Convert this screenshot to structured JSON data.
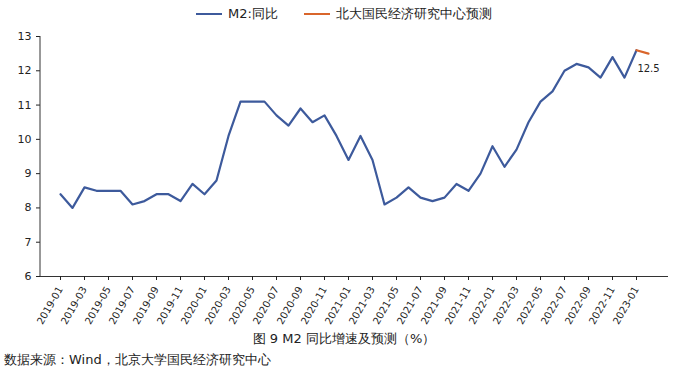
{
  "chart_data": {
    "type": "line",
    "title": "图 9 M2 同比增速及预测（%）",
    "note": "数据来源：Wind，北京大学国民经济研究中心",
    "legend": "top",
    "grid": false,
    "categories": [
      "2019-01",
      null,
      "2019-03",
      null,
      "2019-05",
      null,
      "2019-07",
      null,
      "2019-09",
      null,
      "2019-11",
      null,
      "2020-01",
      null,
      "2020-03",
      null,
      "2020-05",
      null,
      "2020-07",
      null,
      "2020-09",
      null,
      "2020-11",
      null,
      "2021-01",
      null,
      "2021-03",
      null,
      "2021-05",
      null,
      "2021-07",
      null,
      "2021-09",
      null,
      "2021-11",
      null,
      "2022-01",
      null,
      "2022-03",
      null,
      "2022-05",
      null,
      "2022-07",
      null,
      "2022-09",
      null,
      "2022-11",
      null,
      "2023-01",
      null
    ],
    "series": [
      {
        "name": "M2:同比",
        "color": "#3d5a9c",
        "values": [
          8.4,
          8.0,
          8.6,
          8.5,
          8.5,
          8.5,
          8.1,
          8.2,
          8.4,
          8.4,
          8.2,
          8.7,
          8.4,
          8.8,
          10.1,
          11.1,
          11.1,
          11.1,
          10.7,
          10.4,
          10.9,
          10.5,
          10.7,
          10.1,
          9.4,
          10.1,
          9.4,
          8.1,
          8.3,
          8.6,
          8.3,
          8.2,
          8.3,
          8.7,
          8.5,
          9.0,
          9.8,
          9.2,
          9.7,
          10.5,
          11.1,
          11.4,
          12.0,
          12.2,
          12.1,
          11.8,
          12.4,
          11.8,
          12.6,
          null
        ]
      },
      {
        "name": "北大国民经济研究中心预测",
        "color": "#d9652b",
        "values": [
          null,
          null,
          null,
          null,
          null,
          null,
          null,
          null,
          null,
          null,
          null,
          null,
          null,
          null,
          null,
          null,
          null,
          null,
          null,
          null,
          null,
          null,
          null,
          null,
          null,
          null,
          null,
          null,
          null,
          null,
          null,
          null,
          null,
          null,
          null,
          null,
          null,
          null,
          null,
          null,
          null,
          null,
          null,
          null,
          null,
          null,
          null,
          null,
          12.6,
          12.5
        ]
      }
    ],
    "annotations": [
      {
        "text": "12.5"
      }
    ],
    "ylim": [
      6,
      13
    ],
    "yticks": [
      6,
      7,
      8,
      9,
      10,
      11,
      12,
      13
    ]
  }
}
